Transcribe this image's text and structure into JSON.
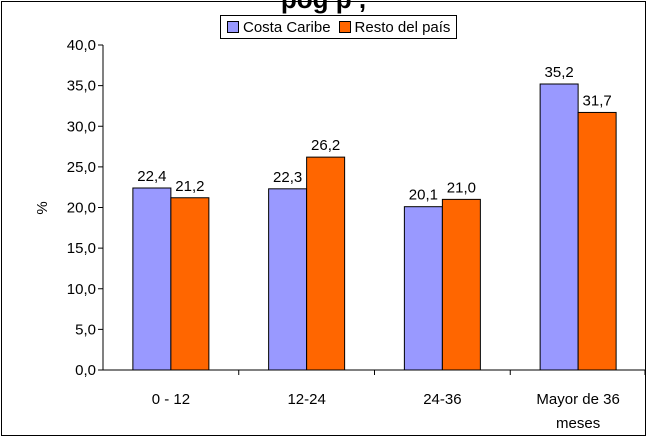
{
  "page_title_partial": "pog p    ,",
  "legend_items": [
    {
      "label": "Costa Caribe",
      "color": "#9999ff"
    },
    {
      "label": "Resto del país",
      "color": "#ff6600"
    }
  ],
  "chart_data": {
    "type": "bar",
    "ylabel": "%",
    "xlabel": "",
    "ylim": [
      0,
      40
    ],
    "yticks": [
      "0,0",
      "5,0",
      "10,0",
      "15,0",
      "20,0",
      "25,0",
      "30,0",
      "35,0",
      "40,0"
    ],
    "categories": [
      [
        "0 - 12"
      ],
      [
        "12-24"
      ],
      [
        "24-36"
      ],
      [
        "Mayor de 36",
        "meses"
      ]
    ],
    "series": [
      {
        "name": "Costa Caribe",
        "values": [
          22.4,
          22.3,
          20.1,
          35.2
        ],
        "labels": [
          "22,4",
          "22,3",
          "20,1",
          "35,2"
        ],
        "color": "#9999ff"
      },
      {
        "name": "Resto del país",
        "values": [
          21.2,
          26.2,
          21.0,
          31.7
        ],
        "labels": [
          "21,2",
          "26,2",
          "21,0",
          "31,7"
        ],
        "color": "#ff6600"
      }
    ],
    "legend_position": "top",
    "grid": false
  }
}
